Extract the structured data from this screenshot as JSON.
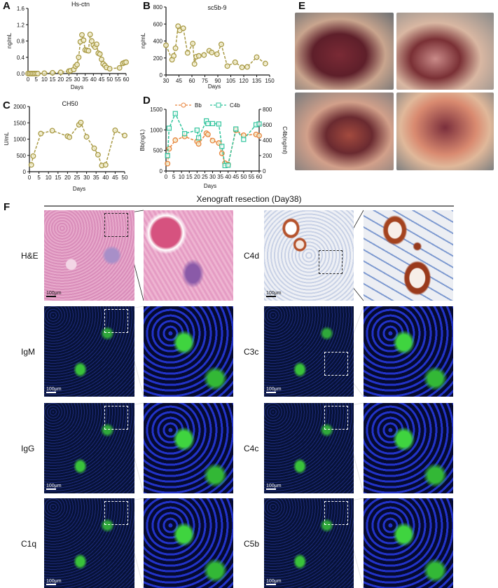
{
  "panel_letters": {
    "a": "A",
    "b": "B",
    "c": "C",
    "d": "D",
    "e": "E",
    "f": "F"
  },
  "chart_data": [
    {
      "id": "A",
      "type": "scatter",
      "title": "Hs-ctn",
      "xlabel": "Days",
      "ylabel": "ng/mL",
      "xlim": [
        0,
        60
      ],
      "ylim": [
        0,
        1.6
      ],
      "xticks": [
        "0",
        "5",
        "10",
        "15",
        "20",
        "25",
        "30",
        "35",
        "40",
        "45",
        "50",
        "55",
        "60"
      ],
      "yticks": [
        "0.0",
        "0.4",
        "0.8",
        "1.2",
        "1.6"
      ],
      "line_style": "dashed",
      "color": "#a99a45",
      "series": [
        {
          "x": [
            0,
            1,
            2,
            3,
            4,
            5,
            6,
            10,
            15,
            20,
            25,
            26,
            28,
            29,
            30,
            31,
            32,
            33,
            34,
            35,
            36,
            37,
            38,
            39,
            40,
            41,
            42,
            43,
            44,
            45,
            46,
            47,
            48,
            50,
            56,
            58,
            59,
            60
          ],
          "y": [
            0,
            0,
            0,
            0,
            0,
            0,
            0,
            0.01,
            0.02,
            0.03,
            0.06,
            0.07,
            0.1,
            0.18,
            0.22,
            0.4,
            0.78,
            0.95,
            0.82,
            0.58,
            0.57,
            0.56,
            0.96,
            0.8,
            0.7,
            0.65,
            0.72,
            0.5,
            0.48,
            0.35,
            0.24,
            0.2,
            0.15,
            0.12,
            0.14,
            0.25,
            0.27,
            0.28
          ]
        }
      ]
    },
    {
      "id": "B",
      "type": "scatter",
      "title": "sc5b-9",
      "xlabel": "Days",
      "ylabel": "ng/mL",
      "xlim": [
        30,
        150
      ],
      "ylim": [
        0,
        800
      ],
      "xticks": [
        "30",
        "45",
        "60",
        "75",
        "90",
        "105",
        "120",
        "135",
        "150"
      ],
      "yticks": [
        "0",
        "200",
        "400",
        "600",
        "800"
      ],
      "line_style": "dashed",
      "color": "#a99a45",
      "series": [
        {
          "x": [
            30,
            37,
            39,
            41,
            44,
            46,
            50,
            55,
            61,
            63,
            65,
            68,
            74,
            80,
            83,
            89,
            94,
            101,
            110,
            118,
            124,
            135,
            145
          ],
          "y": [
            350,
            180,
            225,
            315,
            575,
            525,
            550,
            260,
            370,
            130,
            215,
            225,
            235,
            285,
            265,
            245,
            360,
            105,
            150,
            90,
            95,
            210,
            135
          ]
        }
      ]
    },
    {
      "id": "C",
      "type": "scatter",
      "title": "CH50",
      "xlabel": "Days",
      "ylabel": "U/mL",
      "xlim": [
        0,
        50
      ],
      "ylim": [
        0,
        2000
      ],
      "xticks": [
        "0",
        "5",
        "10",
        "15",
        "20",
        "25",
        "30",
        "35",
        "40",
        "45",
        "50"
      ],
      "yticks": [
        "0",
        "500",
        "1000",
        "1500",
        "2000"
      ],
      "line_style": "dashed",
      "color": "#a99a45",
      "series": [
        {
          "x": [
            1,
            2,
            6,
            12,
            20,
            21,
            26,
            27,
            30,
            34,
            36,
            38,
            40,
            45,
            50
          ],
          "y": [
            210,
            480,
            1170,
            1260,
            1090,
            1060,
            1440,
            1510,
            1070,
            720,
            520,
            190,
            210,
            1270,
            1110
          ]
        }
      ]
    },
    {
      "id": "D",
      "type": "scatter",
      "title": "",
      "xlabel": "Days",
      "ylabel": "Bb(ng/L)",
      "ylabel_right": "C4b(ng/ml)",
      "xlim": [
        0,
        60
      ],
      "ylim": [
        0,
        1500
      ],
      "ylim_right": [
        0,
        800
      ],
      "xticks": [
        "0",
        "5",
        "10",
        "15",
        "20",
        "25",
        "30",
        "35",
        "40",
        "45",
        "50",
        "55",
        "60"
      ],
      "yticks": [
        "0",
        "500",
        "1000",
        "1500"
      ],
      "yticks_right": [
        "0",
        "200",
        "400",
        "600",
        "800"
      ],
      "legend": "top",
      "series": [
        {
          "name": "Bb",
          "axis": "left",
          "marker": "circle",
          "color": "#e8843c",
          "x": [
            1,
            2,
            6,
            12,
            20,
            21,
            26,
            27,
            30,
            34,
            36,
            38,
            40,
            45,
            50,
            58,
            60
          ],
          "y": [
            180,
            540,
            750,
            840,
            720,
            660,
            920,
            890,
            740,
            680,
            430,
            190,
            160,
            990,
            870,
            890,
            860
          ]
        },
        {
          "name": "C4b",
          "axis": "right",
          "marker": "square",
          "color": "#2fc49c",
          "x": [
            1,
            2,
            6,
            12,
            20,
            21,
            26,
            27,
            30,
            34,
            36,
            38,
            40,
            45,
            50,
            58,
            60
          ],
          "y": [
            200,
            555,
            745,
            485,
            530,
            430,
            650,
            615,
            615,
            610,
            320,
            70,
            75,
            545,
            410,
            600,
            610
          ]
        }
      ]
    }
  ],
  "panel_f": {
    "title": "Xenograft resection (Day38)",
    "scale_bar": "100μm",
    "rows": [
      {
        "left": "H&E",
        "right": "C4d"
      },
      {
        "left": "IgM",
        "right": "C3c"
      },
      {
        "left": "IgG",
        "right": "C4c"
      },
      {
        "left": "C1q",
        "right": "C5b"
      }
    ]
  }
}
